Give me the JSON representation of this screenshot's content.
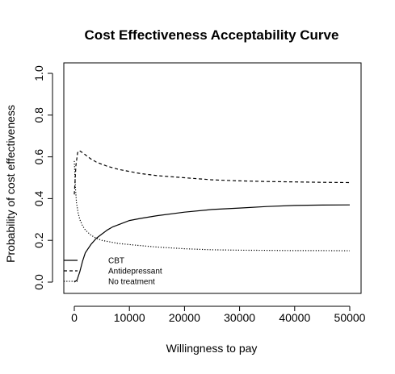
{
  "chart_data": {
    "type": "line",
    "title": "Cost Effectiveness Acceptability Curve",
    "xlabel": "Willingness to pay",
    "ylabel": "Probability of cost effectiveness",
    "xlim": [
      0,
      50000
    ],
    "ylim": [
      0,
      1
    ],
    "x_ticks": [
      0,
      10000,
      20000,
      30000,
      40000,
      50000
    ],
    "x_tick_labels": [
      "0",
      "10000",
      "20000",
      "30000",
      "40000",
      "50000"
    ],
    "y_ticks": [
      0,
      0.2,
      0.4,
      0.6,
      0.8,
      1
    ],
    "y_tick_labels": [
      "0.0",
      "0.2",
      "0.4",
      "0.6",
      "0.8",
      "1.0"
    ],
    "grid": false,
    "legend_position": "bottom-left",
    "series": [
      {
        "name": "CBT",
        "line_style": "solid",
        "color": "#000000",
        "x": [
          0,
          500,
          1000,
          1500,
          2000,
          3000,
          4000,
          5000,
          6000,
          7000,
          8000,
          10000,
          12000,
          15000,
          20000,
          25000,
          30000,
          35000,
          40000,
          45000,
          50000
        ],
        "y": [
          0.0,
          0.01,
          0.05,
          0.1,
          0.14,
          0.18,
          0.21,
          0.23,
          0.25,
          0.265,
          0.275,
          0.295,
          0.305,
          0.318,
          0.335,
          0.348,
          0.355,
          0.362,
          0.367,
          0.369,
          0.37
        ]
      },
      {
        "name": "Antidepressant",
        "line_style": "dashed",
        "color": "#000000",
        "x": [
          0,
          300,
          600,
          900,
          1200,
          2000,
          3000,
          4000,
          5000,
          6000,
          8000,
          10000,
          12000,
          15000,
          20000,
          25000,
          30000,
          35000,
          40000,
          45000,
          50000
        ],
        "y": [
          0.42,
          0.56,
          0.62,
          0.63,
          0.625,
          0.61,
          0.59,
          0.575,
          0.565,
          0.555,
          0.54,
          0.53,
          0.52,
          0.51,
          0.5,
          0.49,
          0.485,
          0.482,
          0.48,
          0.478,
          0.477
        ]
      },
      {
        "name": "No treatment",
        "line_style": "dotted",
        "color": "#000000",
        "x": [
          0,
          200,
          400,
          700,
          1000,
          1500,
          2000,
          3000,
          4000,
          5000,
          6000,
          8000,
          10000,
          12000,
          15000,
          20000,
          25000,
          30000,
          35000,
          40000,
          45000,
          50000
        ],
        "y": [
          0.58,
          0.45,
          0.38,
          0.33,
          0.3,
          0.27,
          0.25,
          0.225,
          0.21,
          0.2,
          0.195,
          0.185,
          0.18,
          0.175,
          0.168,
          0.16,
          0.155,
          0.153,
          0.152,
          0.151,
          0.151,
          0.15
        ]
      }
    ]
  }
}
